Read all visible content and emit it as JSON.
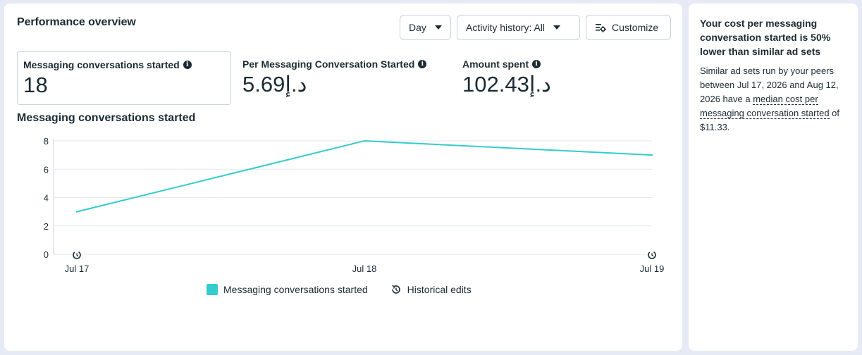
{
  "header": {
    "title": "Performance overview",
    "day_label": "Day",
    "activity_label": "Activity history: All",
    "customize_label": "Customize"
  },
  "metrics": [
    {
      "label": "Messaging conversations started",
      "value": "18"
    },
    {
      "label": "Per Messaging Conversation Started",
      "value": "5.69د.إ"
    },
    {
      "label": "Amount spent",
      "value": "102.43د.إ"
    }
  ],
  "chart_title": "Messaging conversations started",
  "chart_data": {
    "type": "line",
    "categories": [
      "Jul 17",
      "Jul 18",
      "Jul 19"
    ],
    "series": [
      {
        "name": "Messaging conversations started",
        "values": [
          3,
          8,
          7
        ],
        "color": "#33cccc"
      }
    ],
    "yticks": [
      0,
      2,
      4,
      6,
      8
    ],
    "ylim": [
      0,
      8
    ],
    "grid": true,
    "legend": "bottom",
    "historical_edit_markers": [
      "Jul 17",
      "Jul 19"
    ]
  },
  "legend": {
    "series_label": "Messaging conversations started",
    "historical_label": "Historical edits"
  },
  "side": {
    "headline": "Your cost per messaging conversation started is 50% lower than similar ad sets",
    "body_prefix": "Similar ad sets run by your peers between Jul 17, 2026 and Aug 12, 2026 have a ",
    "body_link": "median cost per messaging conversation started",
    "body_suffix": " of $11.33."
  }
}
